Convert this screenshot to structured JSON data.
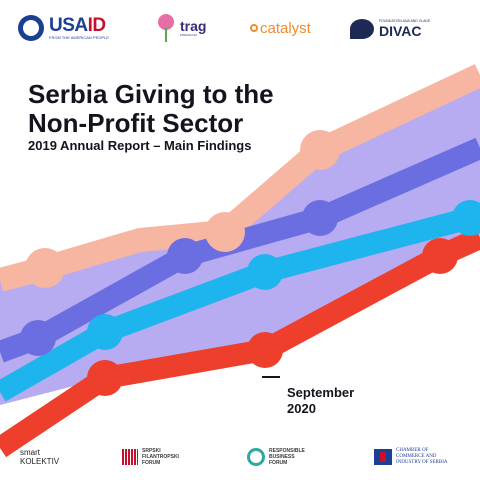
{
  "logos_top": {
    "usaid": {
      "name_main": "USA",
      "name_accent": "ID",
      "tagline": "FROM THE AMERICAN PEOPLE"
    },
    "trag": {
      "name": "trag",
      "tagline": "FONDACIJA"
    },
    "catalyst": {
      "name": "catalyst"
    },
    "divac": {
      "tagline": "FOUNDATION ANA AND VLADE",
      "name": "DIVAC"
    }
  },
  "cover": {
    "title_line1": "Serbia Giving to the",
    "title_line2": "Non-Profit Sector",
    "subtitle": "2019 Annual Report – Main Findings",
    "date_line1": "September",
    "date_line2": "2020"
  },
  "logos_bottom": {
    "smart": {
      "line1": "smart",
      "line2": "KOLEKTIV"
    },
    "sfp": {
      "line1": "SRPSKI",
      "line2": "FILANTROPSKI",
      "line3": "FORUM"
    },
    "rbf": {
      "line1": "RESPONSIBLE",
      "line2": "BUSINESS",
      "line3": "FORUM"
    },
    "chamber": {
      "line1": "CHAMBER OF",
      "line2": "COMMERCE AND",
      "line3": "INDUSTRY OF SERBIA"
    }
  },
  "colors": {
    "band": "#b3a6f0",
    "line_peach": "#f7b6a2",
    "line_purple": "#6a6ee0",
    "line_cyan": "#1eb4ee",
    "line_red": "#ee3f2c",
    "text": "#14141e"
  }
}
